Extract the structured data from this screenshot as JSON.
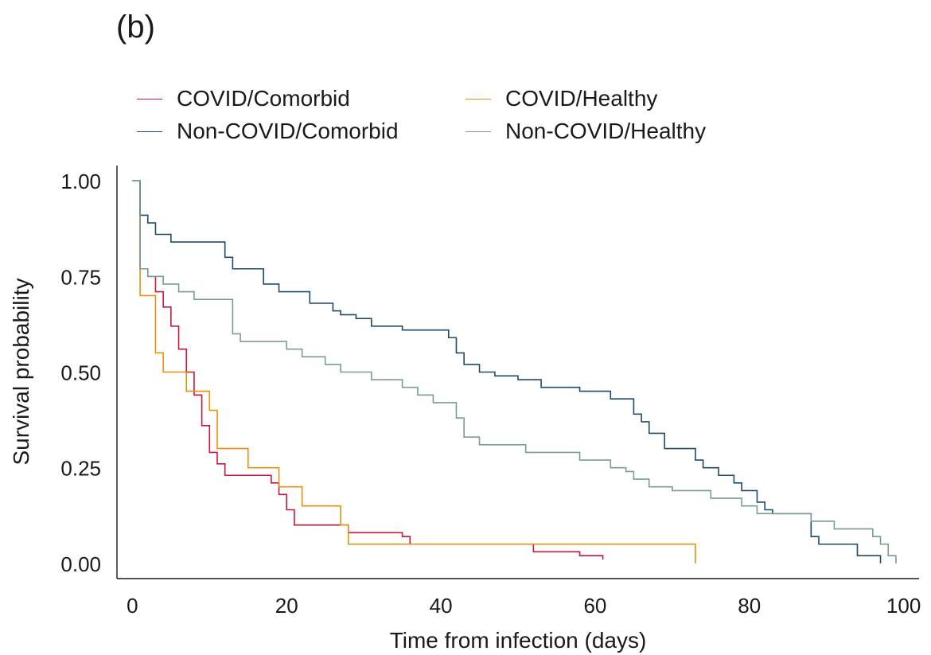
{
  "figure": {
    "panel_label": "(b)"
  },
  "colors": {
    "covid_comorbid": "#c8163f",
    "covid_healthy": "#e8900c",
    "noncovid_comorbid": "#1d4a6e",
    "noncovid_healthy": "#779e8f",
    "axis": "#1a1a1a"
  },
  "chart_data": {
    "type": "line",
    "title": "",
    "xlabel": "Time from infection (days)",
    "ylabel": "Survival probability",
    "xlim": [
      -2,
      102
    ],
    "ylim": [
      -0.04,
      1.04
    ],
    "xticks": [
      0,
      20,
      40,
      60,
      80,
      100
    ],
    "xtick_labels": [
      "0",
      "20",
      "40",
      "60",
      "80",
      "100"
    ],
    "yticks": [
      0,
      0.25,
      0.5,
      0.75,
      1.0
    ],
    "ytick_labels": [
      "0.00",
      "0.25",
      "0.50",
      "0.75",
      "1.00"
    ],
    "grid": false,
    "legend_position": "top",
    "step": true,
    "series": [
      {
        "name": "COVID/Comorbid",
        "color_key": "covid_comorbid",
        "x": [
          1,
          2,
          3,
          4,
          5,
          6,
          7,
          8,
          9,
          10,
          11,
          12,
          18,
          19,
          20,
          21,
          28,
          35,
          36,
          52,
          58,
          61
        ],
        "y": [
          0.77,
          0.75,
          0.71,
          0.67,
          0.62,
          0.56,
          0.5,
          0.44,
          0.36,
          0.29,
          0.26,
          0.23,
          0.21,
          0.18,
          0.14,
          0.1,
          0.08,
          0.07,
          0.05,
          0.03,
          0.02,
          0.01
        ]
      },
      {
        "name": "COVID/Healthy",
        "color_key": "covid_healthy",
        "x": [
          1,
          3,
          4,
          7,
          10,
          11,
          15,
          19,
          22,
          27,
          28,
          73
        ],
        "y": [
          0.7,
          0.55,
          0.5,
          0.45,
          0.4,
          0.3,
          0.25,
          0.2,
          0.15,
          0.1,
          0.05,
          0.0
        ]
      },
      {
        "name": "Non-COVID/Comorbid",
        "color_key": "noncovid_comorbid",
        "x": [
          1,
          2,
          3,
          4,
          5,
          12,
          13,
          17,
          19,
          23,
          26,
          27,
          29,
          31,
          35,
          41,
          42,
          43,
          45,
          47,
          50,
          53,
          58,
          62,
          65,
          66,
          67,
          69,
          73,
          74,
          76,
          78,
          79,
          81,
          82,
          83,
          88,
          89,
          94,
          97
        ],
        "y": [
          0.91,
          0.89,
          0.86,
          0.86,
          0.84,
          0.8,
          0.77,
          0.73,
          0.71,
          0.68,
          0.66,
          0.65,
          0.64,
          0.62,
          0.61,
          0.59,
          0.55,
          0.52,
          0.5,
          0.49,
          0.48,
          0.46,
          0.45,
          0.43,
          0.39,
          0.37,
          0.34,
          0.3,
          0.27,
          0.25,
          0.23,
          0.21,
          0.19,
          0.16,
          0.14,
          0.13,
          0.07,
          0.05,
          0.02,
          0.0
        ]
      },
      {
        "name": "Non-COVID/Healthy",
        "color_key": "noncovid_healthy",
        "x": [
          1,
          2,
          4,
          6,
          8,
          13,
          14,
          20,
          22,
          25,
          27,
          31,
          35,
          37,
          39,
          42,
          43,
          45,
          51,
          58,
          62,
          64,
          65,
          67,
          70,
          75,
          79,
          81,
          88,
          91,
          96,
          97,
          98,
          99
        ],
        "y": [
          0.77,
          0.75,
          0.73,
          0.71,
          0.69,
          0.6,
          0.58,
          0.56,
          0.54,
          0.52,
          0.5,
          0.48,
          0.46,
          0.44,
          0.42,
          0.38,
          0.33,
          0.31,
          0.29,
          0.27,
          0.25,
          0.24,
          0.22,
          0.2,
          0.19,
          0.17,
          0.15,
          0.13,
          0.11,
          0.09,
          0.07,
          0.05,
          0.02,
          0.0
        ]
      }
    ]
  }
}
